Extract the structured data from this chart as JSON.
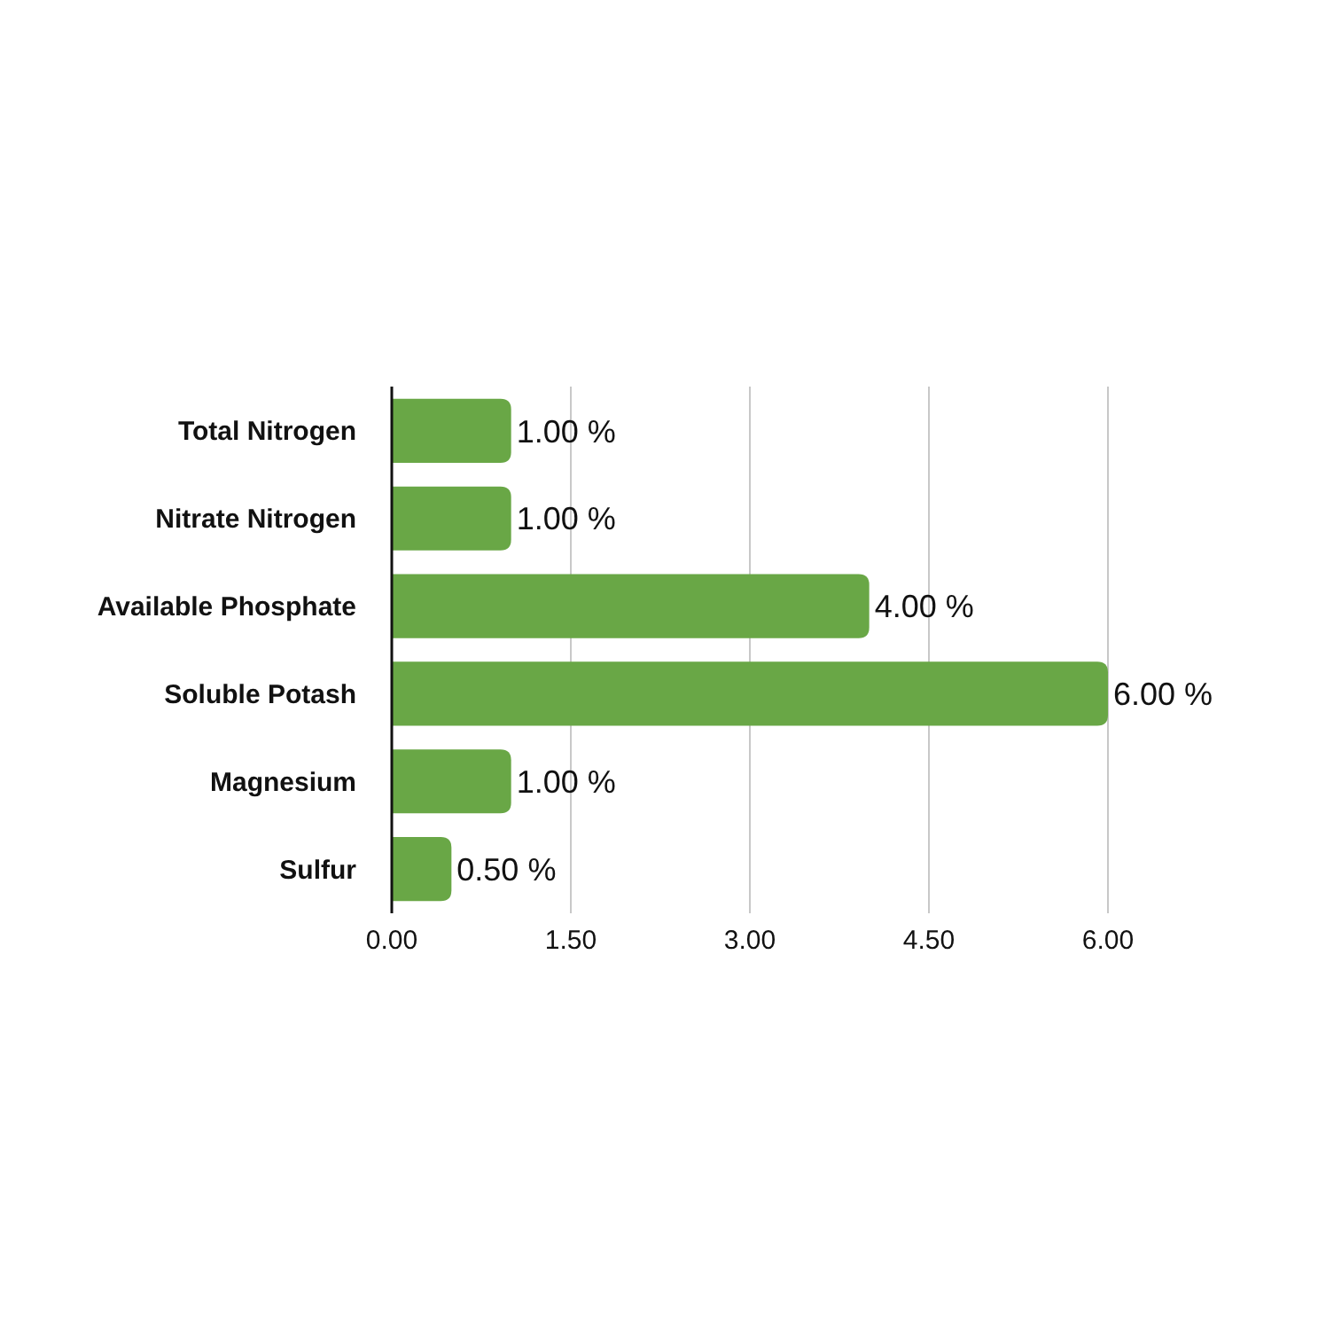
{
  "chart_data": {
    "type": "bar",
    "orientation": "horizontal",
    "categories": [
      "Total Nitrogen",
      "Nitrate Nitrogen",
      "Available Phosphate",
      "Soluble Potash",
      "Magnesium",
      "Sulfur"
    ],
    "values": [
      1,
      1,
      4,
      6,
      1,
      0.5
    ],
    "value_labels": [
      "1.00 %",
      "1.00 %",
      "4.00 %",
      "6.00 %",
      "1.00 %",
      "0.50 %"
    ],
    "color": "#69a746",
    "xlim": [
      0,
      6
    ],
    "xticks": [
      {
        "value": 0,
        "label": "0.00"
      },
      {
        "value": 1.5,
        "label": "1.50"
      },
      {
        "value": 3,
        "label": "3.00"
      },
      {
        "value": 4.5,
        "label": "4.50"
      },
      {
        "value": 6,
        "label": "6.00"
      }
    ],
    "grid": "x"
  }
}
